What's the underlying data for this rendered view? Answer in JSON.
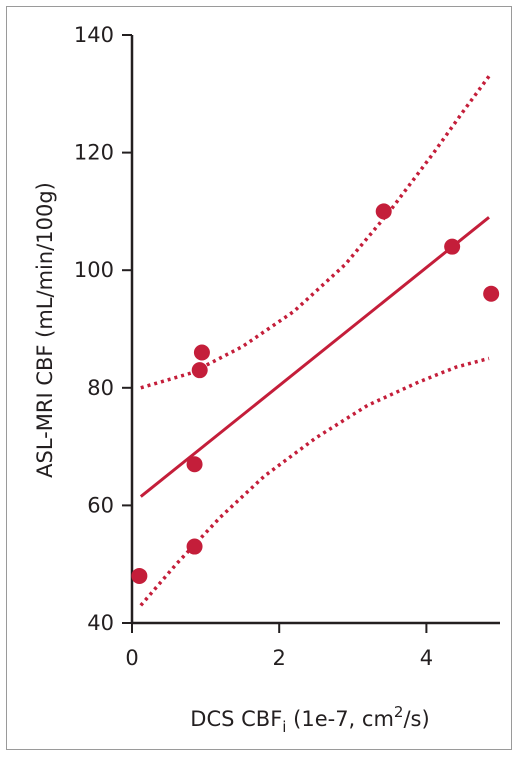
{
  "chart_data": {
    "type": "scatter",
    "title": "",
    "xlabel": {
      "main": "DCS CBF",
      "sub": "i",
      "rest": " (1e-7, cm",
      "sup": "2",
      "end": "/s)"
    },
    "ylabel": "ASL-MRI CBF (mL/min/100g)",
    "xlim": [
      0,
      5
    ],
    "ylim": [
      40,
      140
    ],
    "xticks": [
      0,
      2,
      4
    ],
    "yticks": [
      40,
      60,
      80,
      100,
      120,
      140
    ],
    "grid": false,
    "points": [
      {
        "x": 0.1,
        "y": 48
      },
      {
        "x": 0.85,
        "y": 53
      },
      {
        "x": 0.85,
        "y": 67
      },
      {
        "x": 0.92,
        "y": 83
      },
      {
        "x": 0.95,
        "y": 86
      },
      {
        "x": 3.42,
        "y": 110
      },
      {
        "x": 4.35,
        "y": 104
      },
      {
        "x": 4.88,
        "y": 96
      }
    ],
    "fit_line": [
      {
        "x": 0.12,
        "y": 61.5
      },
      {
        "x": 4.85,
        "y": 109
      }
    ],
    "ci_upper": [
      {
        "x": 0.12,
        "y": 80
      },
      {
        "x": 0.8,
        "y": 82.5
      },
      {
        "x": 1.5,
        "y": 87
      },
      {
        "x": 2.2,
        "y": 93
      },
      {
        "x": 2.9,
        "y": 101
      },
      {
        "x": 3.5,
        "y": 110
      },
      {
        "x": 4.1,
        "y": 120
      },
      {
        "x": 4.5,
        "y": 127
      },
      {
        "x": 4.85,
        "y": 133
      }
    ],
    "ci_lower": [
      {
        "x": 0.12,
        "y": 43
      },
      {
        "x": 0.6,
        "y": 50
      },
      {
        "x": 1.2,
        "y": 58
      },
      {
        "x": 1.8,
        "y": 65
      },
      {
        "x": 2.5,
        "y": 71.5
      },
      {
        "x": 3.2,
        "y": 77
      },
      {
        "x": 3.9,
        "y": 81
      },
      {
        "x": 4.4,
        "y": 83.5
      },
      {
        "x": 4.85,
        "y": 85
      }
    ],
    "colors": {
      "series": "#c41e3a",
      "axis": "#231f20"
    }
  }
}
